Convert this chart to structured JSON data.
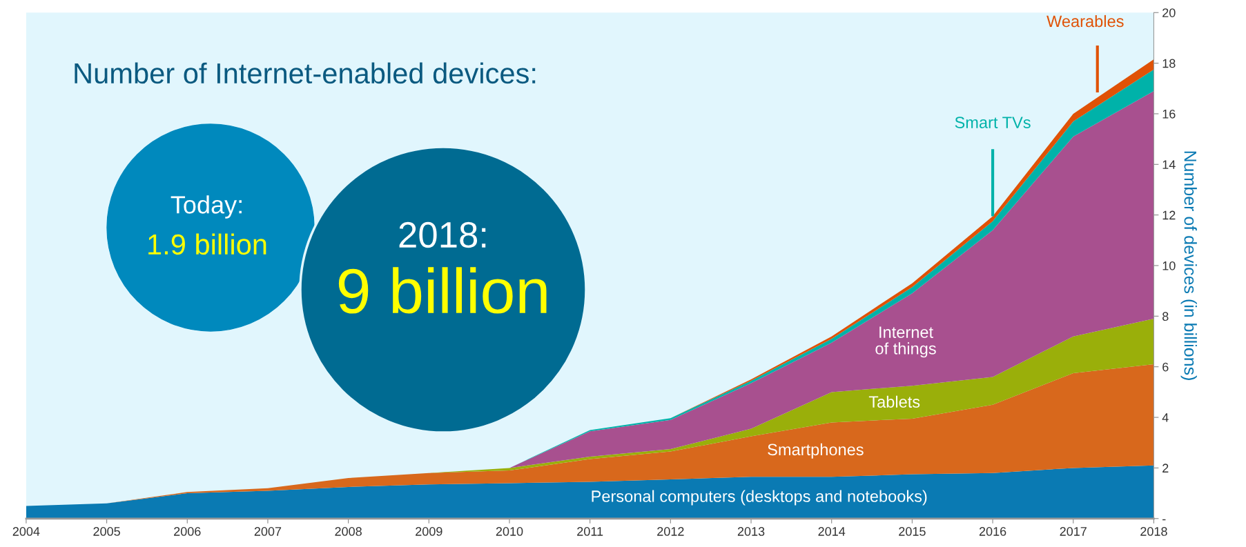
{
  "chart_data": {
    "type": "area",
    "stacked": true,
    "title": "Number of Internet-enabled devices:",
    "ylabel": "Number of devices (in billions)",
    "x": [
      2004,
      2005,
      2006,
      2007,
      2008,
      2009,
      2010,
      2011,
      2012,
      2013,
      2014,
      2015,
      2016,
      2017,
      2018
    ],
    "xlim": [
      2004,
      2018
    ],
    "xticks": [
      2004,
      2005,
      2006,
      2007,
      2008,
      2009,
      2010,
      2011,
      2012,
      2013,
      2014,
      2015,
      2016,
      2017,
      2018
    ],
    "ylim": [
      0,
      20
    ],
    "yticks": [
      {
        "value": 0,
        "label": "-"
      },
      2,
      4,
      6,
      8,
      10,
      12,
      14,
      16,
      18,
      20
    ],
    "grid": false,
    "legend": false,
    "series": [
      {
        "name": "Personal computers (desktops and notebooks)",
        "color": "#0a7ab3",
        "values": [
          0.5,
          0.6,
          1.0,
          1.1,
          1.25,
          1.35,
          1.4,
          1.45,
          1.55,
          1.65,
          1.65,
          1.75,
          1.8,
          2.0,
          2.1
        ]
      },
      {
        "name": "Smartphones",
        "color": "#d8681c",
        "values": [
          0,
          0,
          0.05,
          0.1,
          0.35,
          0.45,
          0.5,
          0.9,
          1.1,
          1.6,
          2.15,
          2.2,
          2.7,
          3.75,
          4.0
        ]
      },
      {
        "name": "Tablets",
        "color": "#9aaf0a",
        "values": [
          0,
          0,
          0,
          0,
          0,
          0,
          0.1,
          0.1,
          0.1,
          0.3,
          1.2,
          1.3,
          1.1,
          1.45,
          1.8
        ]
      },
      {
        "name": "Internet of things",
        "color": "#a8508f",
        "values": [
          0,
          0,
          0,
          0,
          0,
          0,
          0,
          1.0,
          1.15,
          1.8,
          1.95,
          3.65,
          5.8,
          7.9,
          9.0
        ]
      },
      {
        "name": "Smart TVs",
        "color": "#00b2a9",
        "values": [
          0,
          0,
          0,
          0,
          0,
          0,
          0,
          0.05,
          0.07,
          0.1,
          0.15,
          0.25,
          0.35,
          0.6,
          0.85
        ]
      },
      {
        "name": "Wearables",
        "color": "#e05206",
        "values": [
          0,
          0,
          0,
          0,
          0,
          0,
          0,
          0,
          0,
          0.05,
          0.1,
          0.15,
          0.2,
          0.3,
          0.4
        ]
      }
    ],
    "annotations": [
      "Today:",
      "1.9 billion",
      "2018:",
      "9 billion"
    ]
  }
}
